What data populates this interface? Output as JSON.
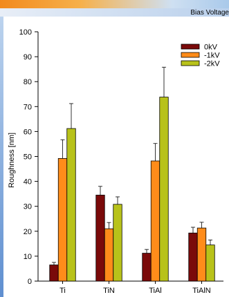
{
  "header": {
    "caption": "Bias Voltage"
  },
  "chart_data": {
    "type": "bar",
    "ylabel": "Roughness [nm]",
    "xlabel": "",
    "ylim": [
      0,
      100
    ],
    "yticks": [
      0,
      10,
      20,
      30,
      40,
      50,
      60,
      70,
      80,
      90,
      100
    ],
    "categories": [
      "Ti",
      "TiN",
      "TiAl",
      "TiAlN"
    ],
    "series": [
      {
        "name": "0kV",
        "color": "#7a0a0a",
        "values": [
          6.5,
          34.5,
          11.2,
          19.3
        ],
        "errors": [
          1.0,
          3.5,
          1.5,
          2.3
        ]
      },
      {
        "name": "-1kV",
        "color": "#ff8c1a",
        "values": [
          49.2,
          21.0,
          48.2,
          21.3
        ],
        "errors": [
          7.5,
          2.5,
          7.0,
          2.3
        ]
      },
      {
        "name": "-2kV",
        "color": "#b8c21a",
        "values": [
          61.2,
          30.8,
          73.8,
          14.5
        ],
        "errors": [
          10.0,
          3.0,
          12.0,
          2.0
        ]
      }
    ],
    "legend_position": "top-right",
    "error_bars": true,
    "grid": false
  }
}
